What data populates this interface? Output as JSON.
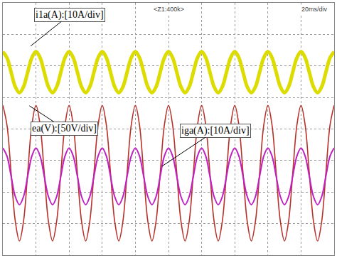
{
  "chart_data": {
    "type": "line",
    "annotations": [
      "<Z1:400k>",
      "20ms/div"
    ],
    "x": [
      0,
      2.5,
      5,
      7.5,
      10,
      12.5,
      15,
      17.5,
      20,
      22.5,
      25,
      27.5,
      30,
      32.5,
      35,
      37.5,
      40,
      42.5,
      45,
      47.5,
      50,
      52.5,
      55,
      57.5,
      60,
      62.5,
      65,
      67.5,
      70,
      72.5,
      75,
      77.5,
      80,
      82.5,
      85,
      87.5,
      90,
      92.5,
      95,
      97.5,
      100,
      102.5,
      105,
      107.5,
      110,
      112.5,
      115,
      117.5,
      120,
      122.5,
      125,
      127.5,
      130,
      132.5,
      135,
      137.5,
      140,
      142.5,
      145,
      147.5,
      150,
      152.5,
      155,
      157.5,
      160,
      162.5,
      165,
      167.5,
      170,
      172.5,
      175,
      177.5,
      180,
      182.5,
      185,
      187.5,
      190,
      192.5,
      195,
      197.5,
      200
    ],
    "series": [
      {
        "name": "i1a(A):[10A/div]",
        "color": "#dcdc00",
        "line_style": "solid",
        "values": [
          6.45,
          6.26,
          5.8,
          5.34,
          5.15,
          5.34,
          5.8,
          6.26,
          6.45,
          6.26,
          5.8,
          5.34,
          5.15,
          5.34,
          5.8,
          6.26,
          6.45,
          6.26,
          5.8,
          5.34,
          5.15,
          5.34,
          5.8,
          6.26,
          6.45,
          6.26,
          5.8,
          5.34,
          5.15,
          5.34,
          5.8,
          6.26,
          6.45,
          6.26,
          5.8,
          5.34,
          5.15,
          5.34,
          5.8,
          6.26,
          6.45,
          6.26,
          5.8,
          5.34,
          5.15,
          5.34,
          5.8,
          6.26,
          6.45,
          6.26,
          5.8,
          5.34,
          5.15,
          5.34,
          5.8,
          6.26,
          6.45,
          6.26,
          5.8,
          5.34,
          5.15,
          5.34,
          5.8,
          6.26,
          6.45,
          6.26,
          5.8,
          5.34,
          5.15,
          5.34,
          5.8,
          6.26,
          6.45,
          6.26,
          5.8,
          5.34,
          5.15,
          5.34,
          5.8,
          6.26,
          6.45
        ]
      },
      {
        "name": "ea(V):[50V/div]",
        "color": "#b8302a",
        "line_style": "solid",
        "values": [
          4.75,
          4.12,
          2.6,
          1.08,
          0.45,
          1.08,
          2.6,
          4.12,
          4.75,
          4.12,
          2.6,
          1.08,
          0.45,
          1.08,
          2.6,
          4.12,
          4.75,
          4.12,
          2.6,
          1.08,
          0.45,
          1.08,
          2.6,
          4.12,
          4.75,
          4.12,
          2.6,
          1.08,
          0.45,
          1.08,
          2.6,
          4.12,
          4.75,
          4.12,
          2.6,
          1.08,
          0.45,
          1.08,
          2.6,
          4.12,
          4.75,
          4.12,
          2.6,
          1.08,
          0.45,
          1.08,
          2.6,
          4.12,
          4.75,
          4.12,
          2.6,
          1.08,
          0.45,
          1.08,
          2.6,
          4.12,
          4.75,
          4.12,
          2.6,
          1.08,
          0.45,
          1.08,
          2.6,
          4.12,
          4.75,
          4.12,
          2.6,
          1.08,
          0.45,
          1.08,
          2.6,
          4.12,
          4.75,
          4.12,
          2.6,
          1.08,
          0.45,
          1.08,
          2.6,
          4.12,
          4.75
        ]
      },
      {
        "name": "iga(A):[10A/div]",
        "color": "#c020c0",
        "line_style": "solid",
        "values": [
          3.4,
          3.14,
          2.5,
          1.86,
          1.6,
          1.86,
          2.5,
          3.14,
          3.4,
          3.14,
          2.5,
          1.86,
          1.6,
          1.86,
          2.5,
          3.14,
          3.4,
          3.14,
          2.5,
          1.86,
          1.6,
          1.86,
          2.5,
          3.14,
          3.4,
          3.14,
          2.5,
          1.86,
          1.6,
          1.86,
          2.5,
          3.14,
          3.4,
          3.14,
          2.5,
          1.86,
          1.6,
          1.86,
          2.5,
          3.14,
          3.4,
          3.14,
          2.5,
          1.86,
          1.6,
          1.86,
          2.5,
          3.14,
          3.4,
          3.14,
          2.5,
          1.86,
          1.6,
          1.86,
          2.5,
          3.14,
          3.4,
          3.14,
          2.5,
          1.86,
          1.6,
          1.86,
          2.5,
          3.14,
          3.4,
          3.14,
          2.5,
          1.86,
          1.6,
          1.86,
          2.5,
          3.14,
          3.4,
          3.14,
          2.5,
          1.86,
          1.6,
          1.86,
          2.5,
          3.14,
          3.4
        ]
      }
    ],
    "xlim": [
      0,
      200
    ],
    "xticks": [
      0,
      20,
      40,
      60,
      80,
      100,
      120,
      140,
      160,
      180,
      200
    ],
    "ylim": [
      0,
      8
    ],
    "yticks": [
      0,
      1,
      2,
      3,
      4,
      5,
      6,
      7,
      8
    ],
    "grid": true,
    "tick_labels": false
  }
}
